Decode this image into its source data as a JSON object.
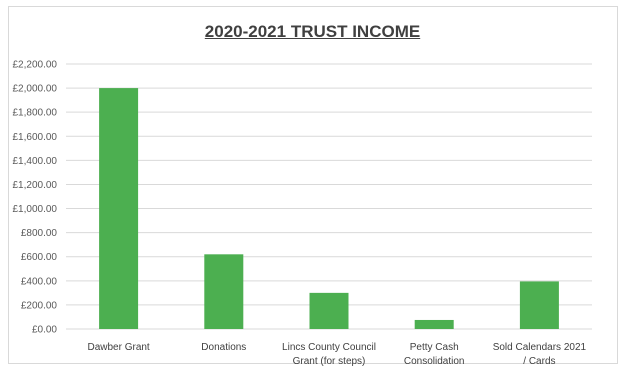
{
  "chart_data": {
    "type": "bar",
    "title": "2020-2021 TRUST INCOME",
    "xlabel": "",
    "ylabel": "",
    "categories": [
      "Dawber Grant",
      "Donations",
      "Lincs County Council Grant (for steps)",
      "Petty Cash Consolidation",
      "Sold Calendars 2021 / Cards"
    ],
    "category_lines": [
      [
        "Dawber Grant"
      ],
      [
        "Donations"
      ],
      [
        "Lincs County Council",
        "Grant (for steps)"
      ],
      [
        "Petty Cash",
        "Consolidation"
      ],
      [
        "Sold Calendars 2021",
        "/ Cards"
      ]
    ],
    "values": [
      2000,
      620,
      300,
      75,
      395
    ],
    "ylim": [
      0,
      2200
    ],
    "yticks": [
      0,
      200,
      400,
      600,
      800,
      1000,
      1200,
      1400,
      1600,
      1800,
      2000,
      2200
    ],
    "ytick_labels": [
      "£0.00",
      "£200.00",
      "£400.00",
      "£600.00",
      "£800.00",
      "£1,000.00",
      "£1,200.00",
      "£1,400.00",
      "£1,600.00",
      "£1,800.00",
      "£2,000.00",
      "£2,200.00"
    ],
    "grid": true,
    "legend": "none",
    "bar_color": "#4caf50",
    "grid_color": "#d9d9d9"
  }
}
